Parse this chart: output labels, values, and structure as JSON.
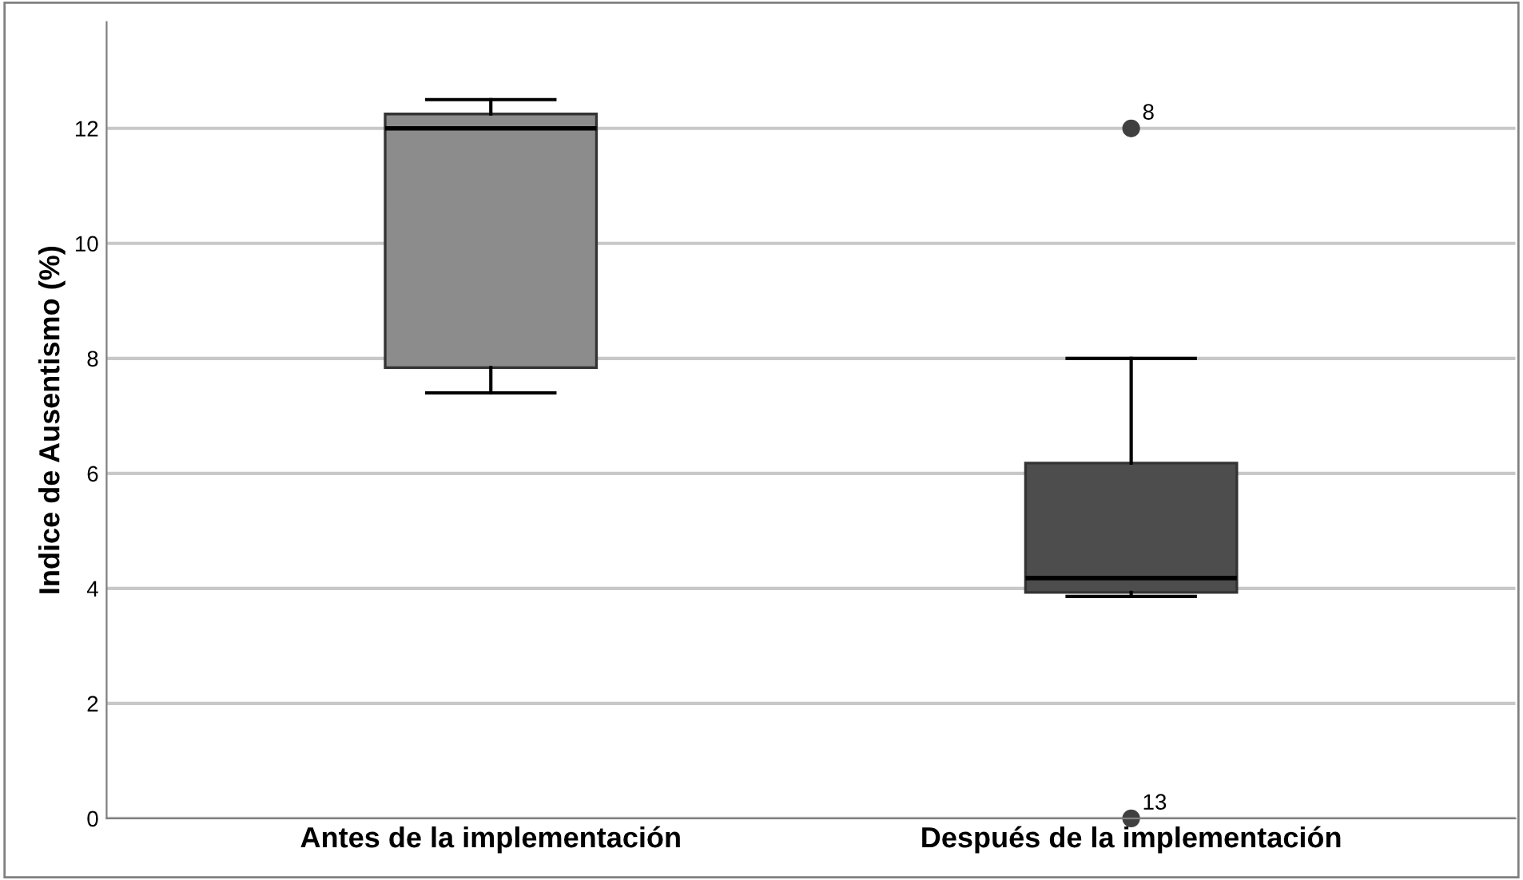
{
  "chart_data": {
    "type": "box",
    "ylabel": "Indice de Ausentismo (%)",
    "categories": [
      "Antes de la implementación",
      "Después de la implementación"
    ],
    "boxes": [
      {
        "low": 7.4,
        "q1": 7.84,
        "median": 12.0,
        "q3": 12.25,
        "high": 12.5
      },
      {
        "low": 3.86,
        "q1": 3.93,
        "median": 4.18,
        "q3": 6.18,
        "high": 8.0,
        "outliers": [
          12,
          0
        ]
      }
    ],
    "colors": [
      "#8c8c8c",
      "#4d4d4d"
    ],
    "ylim": [
      0,
      13.85
    ],
    "yticks": [
      0,
      2,
      4,
      6,
      8,
      10,
      12
    ],
    "grid": "y",
    "annotations": [
      "8",
      "13"
    ]
  }
}
